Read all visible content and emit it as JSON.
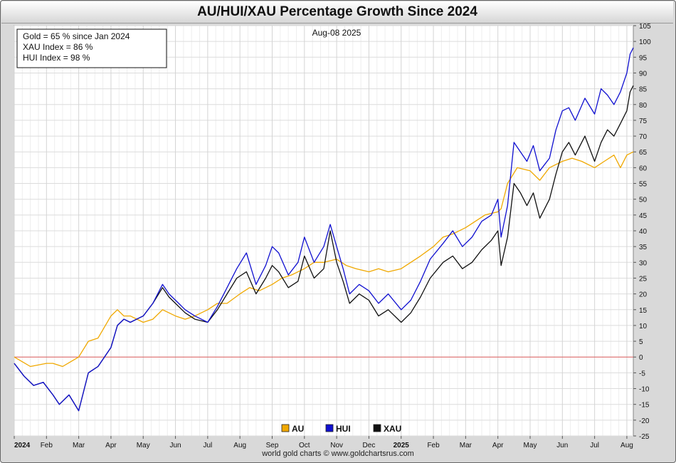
{
  "chart_data": {
    "type": "line",
    "title": "AU/HUI/XAU Percentage Growth Since 2024",
    "date_label": "Aug-08  2025",
    "annotation_lines": [
      "Gold = 65 % since Jan 2024",
      "XAU Index = 86 %",
      "HUI Index = 98 %"
    ],
    "ylim": [
      -25,
      105
    ],
    "yticks": [
      -25,
      -20,
      -15,
      -10,
      -5,
      0,
      5,
      10,
      15,
      20,
      25,
      30,
      35,
      40,
      45,
      50,
      55,
      60,
      65,
      70,
      75,
      80,
      85,
      90,
      95,
      100,
      105
    ],
    "xlim": [
      0,
      19.2
    ],
    "xticks": [
      {
        "pos": 0,
        "label": "2024"
      },
      {
        "pos": 1,
        "label": "Feb"
      },
      {
        "pos": 2,
        "label": "Mar"
      },
      {
        "pos": 3,
        "label": "Apr"
      },
      {
        "pos": 4,
        "label": "May"
      },
      {
        "pos": 5,
        "label": "Jun"
      },
      {
        "pos": 6,
        "label": "Jul"
      },
      {
        "pos": 7,
        "label": "Aug"
      },
      {
        "pos": 8,
        "label": "Sep"
      },
      {
        "pos": 9,
        "label": "Oct"
      },
      {
        "pos": 10,
        "label": "Nov"
      },
      {
        "pos": 11,
        "label": "Dec"
      },
      {
        "pos": 12,
        "label": "2025"
      },
      {
        "pos": 13,
        "label": "Feb"
      },
      {
        "pos": 14,
        "label": "Mar"
      },
      {
        "pos": 15,
        "label": "Apr"
      },
      {
        "pos": 16,
        "label": "May"
      },
      {
        "pos": 17,
        "label": "Jun"
      },
      {
        "pos": 18,
        "label": "Jul"
      },
      {
        "pos": 19,
        "label": "Aug"
      }
    ],
    "grid": true,
    "zero_line": 0,
    "series": [
      {
        "name": "AU",
        "color": "#f0a800",
        "x": [
          0,
          0.5,
          1.0,
          1.2,
          1.5,
          2.0,
          2.3,
          2.6,
          3.0,
          3.2,
          3.4,
          3.6,
          4.0,
          4.3,
          4.6,
          5.0,
          5.3,
          5.6,
          6.0,
          6.3,
          6.6,
          7.0,
          7.3,
          7.6,
          8.0,
          8.3,
          8.6,
          9.0,
          9.3,
          9.6,
          10.0,
          10.3,
          10.6,
          11.0,
          11.3,
          11.6,
          12.0,
          12.3,
          12.6,
          13.0,
          13.3,
          13.6,
          14.0,
          14.3,
          14.6,
          15.0,
          15.1,
          15.3,
          15.6,
          16.0,
          16.3,
          16.6,
          17.0,
          17.3,
          17.6,
          18.0,
          18.3,
          18.6,
          18.8,
          19.0,
          19.2
        ],
        "y": [
          0,
          -3,
          -2,
          -2,
          -3,
          0,
          5,
          6,
          13,
          15,
          13,
          13,
          11,
          12,
          15,
          13,
          12,
          13,
          15,
          17,
          17,
          20,
          22,
          21,
          23,
          25,
          26,
          28,
          30,
          30,
          31,
          29,
          28,
          27,
          28,
          27,
          28,
          30,
          32,
          35,
          38,
          39,
          41,
          43,
          45,
          46,
          47,
          55,
          60,
          59,
          56,
          60,
          62,
          63,
          62,
          60,
          62,
          64,
          60,
          64,
          65
        ]
      },
      {
        "name": "HUI",
        "color": "#1010d0",
        "x": [
          0,
          0.3,
          0.6,
          0.9,
          1.2,
          1.4,
          1.7,
          2.0,
          2.3,
          2.6,
          3.0,
          3.2,
          3.4,
          3.6,
          4.0,
          4.3,
          4.6,
          4.8,
          5.0,
          5.3,
          5.6,
          6.0,
          6.3,
          6.6,
          6.9,
          7.2,
          7.5,
          7.8,
          8.0,
          8.2,
          8.5,
          8.8,
          9.0,
          9.3,
          9.6,
          9.8,
          10.0,
          10.2,
          10.4,
          10.7,
          11.0,
          11.3,
          11.6,
          12.0,
          12.3,
          12.6,
          12.9,
          13.3,
          13.6,
          13.9,
          14.2,
          14.5,
          14.8,
          15.0,
          15.1,
          15.3,
          15.5,
          15.7,
          15.9,
          16.1,
          16.3,
          16.6,
          16.8,
          17.0,
          17.2,
          17.4,
          17.7,
          18.0,
          18.2,
          18.4,
          18.6,
          18.8,
          19.0,
          19.1,
          19.2
        ],
        "y": [
          -2,
          -6,
          -9,
          -8,
          -12,
          -15,
          -12,
          -17,
          -5,
          -3,
          3,
          10,
          12,
          11,
          13,
          17,
          23,
          20,
          18,
          15,
          13,
          11,
          16,
          22,
          28,
          33,
          23,
          29,
          35,
          33,
          26,
          30,
          38,
          30,
          35,
          42,
          35,
          28,
          20,
          23,
          21,
          17,
          20,
          15,
          18,
          24,
          31,
          36,
          40,
          35,
          38,
          43,
          45,
          50,
          38,
          48,
          68,
          65,
          62,
          67,
          59,
          63,
          72,
          78,
          79,
          75,
          82,
          77,
          85,
          83,
          80,
          84,
          90,
          96,
          98
        ]
      },
      {
        "name": "XAU",
        "color": "#111111",
        "x": [
          0,
          0.3,
          0.6,
          0.9,
          1.2,
          1.4,
          1.7,
          2.0,
          2.3,
          2.6,
          3.0,
          3.2,
          3.4,
          3.6,
          4.0,
          4.3,
          4.6,
          4.8,
          5.0,
          5.3,
          5.6,
          6.0,
          6.3,
          6.6,
          6.9,
          7.2,
          7.5,
          7.8,
          8.0,
          8.2,
          8.5,
          8.8,
          9.0,
          9.3,
          9.6,
          9.8,
          10.0,
          10.2,
          10.4,
          10.7,
          11.0,
          11.3,
          11.6,
          12.0,
          12.3,
          12.6,
          12.9,
          13.3,
          13.6,
          13.9,
          14.2,
          14.5,
          14.8,
          15.0,
          15.1,
          15.3,
          15.5,
          15.7,
          15.9,
          16.1,
          16.3,
          16.6,
          16.8,
          17.0,
          17.2,
          17.4,
          17.7,
          18.0,
          18.2,
          18.4,
          18.6,
          18.8,
          19.0,
          19.1,
          19.2
        ],
        "y": [
          -2,
          -6,
          -9,
          -8,
          -12,
          -15,
          -12,
          -17,
          -5,
          -3,
          3,
          10,
          12,
          11,
          13,
          17,
          22,
          19,
          17,
          14,
          12,
          11,
          15,
          20,
          25,
          27,
          20,
          25,
          29,
          27,
          22,
          24,
          32,
          25,
          28,
          40,
          30,
          24,
          17,
          20,
          18,
          13,
          15,
          11,
          14,
          19,
          25,
          30,
          32,
          28,
          30,
          34,
          37,
          40,
          29,
          38,
          55,
          52,
          48,
          52,
          44,
          50,
          58,
          65,
          68,
          64,
          70,
          62,
          68,
          72,
          70,
          74,
          78,
          84,
          86
        ]
      }
    ],
    "footer": "world gold charts © www.goldchartsrus.com"
  }
}
